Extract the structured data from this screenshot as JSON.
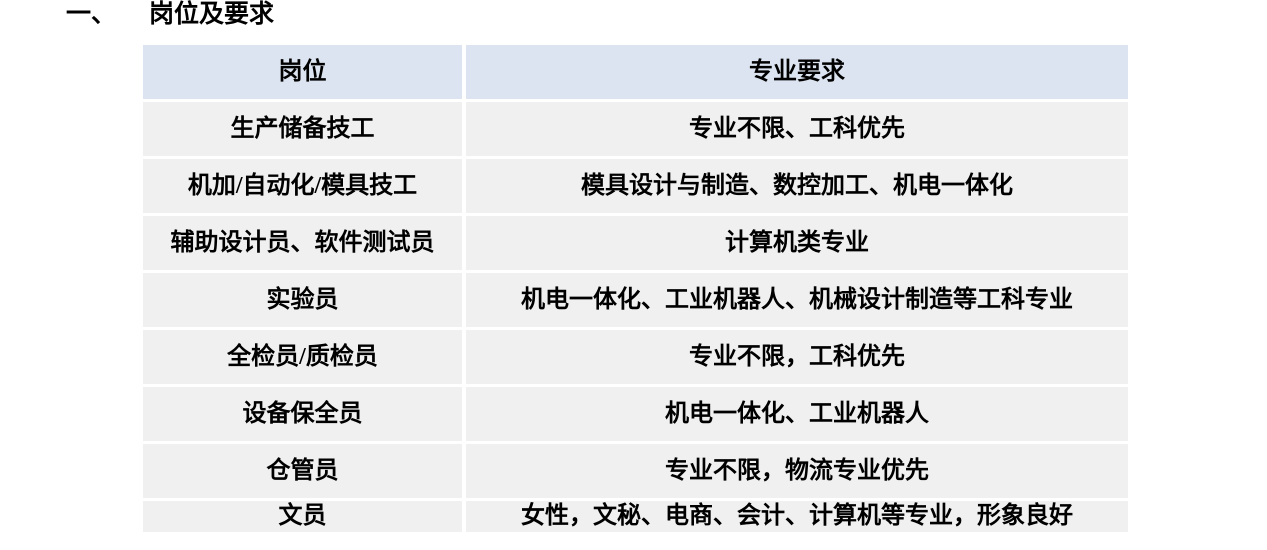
{
  "heading": {
    "number": "一、",
    "title": "岗位及要求"
  },
  "table": {
    "header": {
      "col1": "岗位",
      "col2": "专业要求"
    },
    "header_bg": "#dbe4f0",
    "row_bg": "#f0f0f1",
    "text_color": "#000000",
    "rows": [
      {
        "position": "生产储备技工",
        "requirement": "专业不限、工科优先"
      },
      {
        "position": "机加/自动化/模具技工",
        "requirement": "模具设计与制造、数控加工、机电一体化"
      },
      {
        "position": "辅助设计员、软件测试员",
        "requirement": "计算机类专业"
      },
      {
        "position": "实验员",
        "requirement": "机电一体化、工业机器人、机械设计制造等工科专业"
      },
      {
        "position": "全检员/质检员",
        "requirement": "专业不限，工科优先"
      },
      {
        "position": "设备保全员",
        "requirement": "机电一体化、工业机器人"
      },
      {
        "position": "仓管员",
        "requirement": "专业不限，物流专业优先"
      },
      {
        "position": "文员",
        "requirement": "女性，文秘、电商、会计、计算机等专业，形象良好"
      }
    ]
  }
}
